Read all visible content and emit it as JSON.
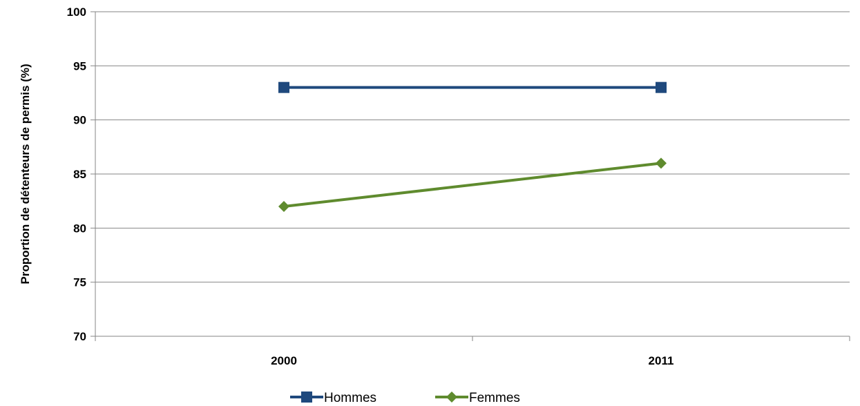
{
  "chart_data": {
    "type": "line",
    "title": "",
    "xlabel": "",
    "ylabel": "Proportion de détenteurs de permis (%)",
    "categories": [
      "2000",
      "2011"
    ],
    "ylim": [
      70,
      100
    ],
    "yticks": [
      70,
      75,
      80,
      85,
      90,
      95,
      100
    ],
    "grid": true,
    "legend_position": "bottom",
    "series": [
      {
        "name": "Hommes",
        "values": [
          93,
          93
        ],
        "color": "#1f497d",
        "marker": "square"
      },
      {
        "name": "Femmes",
        "values": [
          82,
          86
        ],
        "color": "#5f8b2e",
        "marker": "diamond"
      }
    ]
  }
}
